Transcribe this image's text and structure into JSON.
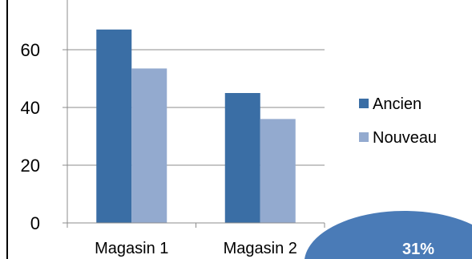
{
  "chart_data": {
    "type": "bar",
    "categories": [
      "Magasin 1",
      "Magasin 2"
    ],
    "series": [
      {
        "name": "Ancien",
        "values": [
          67,
          45
        ],
        "color": "#3A6EA5"
      },
      {
        "name": "Nouveau",
        "values": [
          53.5,
          36
        ],
        "color": "#93AACF"
      }
    ],
    "yticks": [
      0,
      20,
      40,
      60
    ],
    "ylim": [
      0,
      77
    ],
    "grid": true,
    "legend": "right"
  },
  "badge": {
    "text": "31%",
    "color": "#4A7BB7"
  }
}
